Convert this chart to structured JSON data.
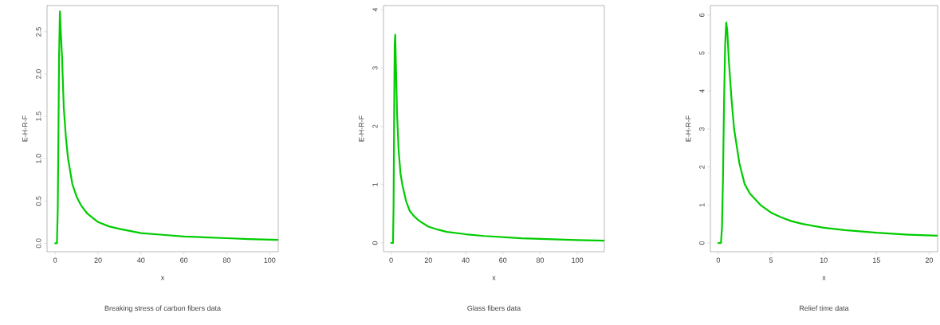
{
  "chart_data": [
    {
      "type": "line",
      "xlabel": "x",
      "ylabel": "E-H-R-F",
      "subtitle": "Breaking stress of carbon fibers data",
      "color": "#00cc00",
      "line_style": "solid",
      "x": [
        0,
        0.8,
        1.2,
        1.5,
        1.8,
        2.2,
        2.6,
        3.2,
        4,
        5,
        6,
        8,
        10,
        12,
        15,
        20,
        25,
        30,
        40,
        50,
        60,
        70,
        80,
        90,
        104
      ],
      "values": [
        0,
        0,
        0.4,
        1.25,
        2.2,
        2.74,
        2.5,
        2.2,
        1.6,
        1.25,
        1.0,
        0.7,
        0.55,
        0.45,
        0.35,
        0.25,
        0.2,
        0.17,
        0.12,
        0.1,
        0.08,
        0.07,
        0.06,
        0.05,
        0.04
      ],
      "xlim": [
        -3.8,
        104
      ],
      "ylim": [
        -0.1,
        2.81
      ],
      "xticks": [
        0,
        20,
        40,
        60,
        80,
        100
      ],
      "yticks": [
        {
          "value": 0,
          "label": "0.0"
        },
        {
          "value": 0.5,
          "label": "0.5"
        },
        {
          "value": 1,
          "label": "1.0"
        },
        {
          "value": 1.5,
          "label": "1.5"
        },
        {
          "value": 2,
          "label": "2.0"
        },
        {
          "value": 2.5,
          "label": "2.5"
        }
      ]
    },
    {
      "type": "line",
      "xlabel": "x",
      "ylabel": "E-H-R-F",
      "subtitle": "Glass fibers data",
      "color": "#00cc00",
      "line_style": "solid",
      "x": [
        0,
        1,
        1.3,
        1.6,
        1.9,
        2.2,
        2.6,
        3.2,
        4,
        5,
        6,
        8,
        10,
        12,
        15,
        20,
        25,
        30,
        40,
        50,
        60,
        70,
        80,
        90,
        100,
        114.5
      ],
      "values": [
        0,
        0,
        0.6,
        2.1,
        3.4,
        3.57,
        3.0,
        2.2,
        1.6,
        1.2,
        1.0,
        0.72,
        0.55,
        0.47,
        0.38,
        0.28,
        0.23,
        0.19,
        0.15,
        0.12,
        0.1,
        0.08,
        0.07,
        0.06,
        0.05,
        0.04
      ],
      "xlim": [
        -4.1,
        114.5
      ],
      "ylim": [
        -0.15,
        4.07
      ],
      "xticks": [
        0,
        20,
        40,
        60,
        80,
        100
      ],
      "yticks": [
        0,
        1,
        2,
        3,
        4
      ]
    },
    {
      "type": "line",
      "xlabel": "x",
      "ylabel": "E-H-R-F",
      "subtitle": "Relief time data",
      "color": "#00cc00",
      "line_style": "solid",
      "x": [
        0,
        0.25,
        0.35,
        0.45,
        0.55,
        0.65,
        0.75,
        0.85,
        1.0,
        1.25,
        1.5,
        2,
        2.5,
        3,
        4,
        5,
        6,
        7,
        8,
        10,
        12,
        15,
        18,
        20.8
      ],
      "values": [
        0,
        0,
        0.4,
        1.8,
        3.8,
        5.2,
        5.8,
        5.6,
        4.8,
        3.8,
        3.0,
        2.1,
        1.55,
        1.3,
        1.0,
        0.8,
        0.67,
        0.57,
        0.5,
        0.4,
        0.34,
        0.27,
        0.22,
        0.19
      ],
      "xlim": [
        -0.75,
        20.8
      ],
      "ylim": [
        -0.23,
        6.25
      ],
      "xticks": [
        0,
        5,
        10,
        15,
        20
      ],
      "yticks": [
        0,
        1,
        2,
        3,
        4,
        5,
        6
      ]
    }
  ]
}
